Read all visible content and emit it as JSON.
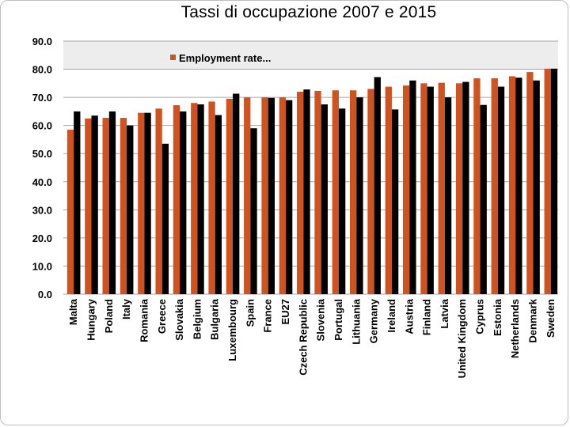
{
  "chart_data": {
    "type": "bar",
    "title": "Tassi di occupazione 2007 e 2015",
    "xlabel": "",
    "ylabel": "",
    "ylim": [
      0,
      90
    ],
    "yticks": [
      "0.0",
      "10.0",
      "20.0",
      "30.0",
      "40.0",
      "50.0",
      "60.0",
      "70.0",
      "80.0",
      "90.0"
    ],
    "grid": true,
    "legend_position": "top",
    "categories": [
      "Malta",
      "Hungary",
      "Poland",
      "Italy",
      "Romania",
      "Greece",
      "Slovakia",
      "Belgium",
      "Bulgaria",
      "Luxembourg",
      "Spain",
      "France",
      "EU27",
      "Czech Republic",
      "Slovenia",
      "Portugal",
      "Lithuania",
      "Germany",
      "Ireland",
      "Austria",
      "Finland",
      "Latvia",
      "United Kingdom",
      "Cyprus",
      "Estonia",
      "Netherlands",
      "Denmark",
      "Sweden"
    ],
    "series": [
      {
        "name": "Employment rate...",
        "color": "#d0531f",
        "values": [
          58.5,
          62.5,
          62.7,
          62.7,
          64.5,
          66.0,
          67.2,
          68.0,
          68.5,
          69.5,
          70.0,
          70.0,
          70.0,
          72.0,
          72.3,
          72.5,
          72.5,
          73.0,
          73.8,
          74.2,
          75.0,
          75.2,
          75.0,
          76.8,
          76.8,
          77.5,
          79.0,
          80.2
        ]
      },
      {
        "name": "",
        "color": "#000000",
        "values": [
          65.0,
          63.5,
          65.0,
          60.0,
          64.5,
          53.5,
          65.0,
          67.5,
          63.7,
          71.3,
          59.0,
          69.8,
          69.0,
          72.8,
          67.5,
          66.0,
          70.0,
          77.2,
          65.7,
          76.0,
          73.8,
          70.0,
          75.5,
          67.3,
          73.8,
          77.0,
          76.0,
          80.2
        ]
      }
    ]
  }
}
